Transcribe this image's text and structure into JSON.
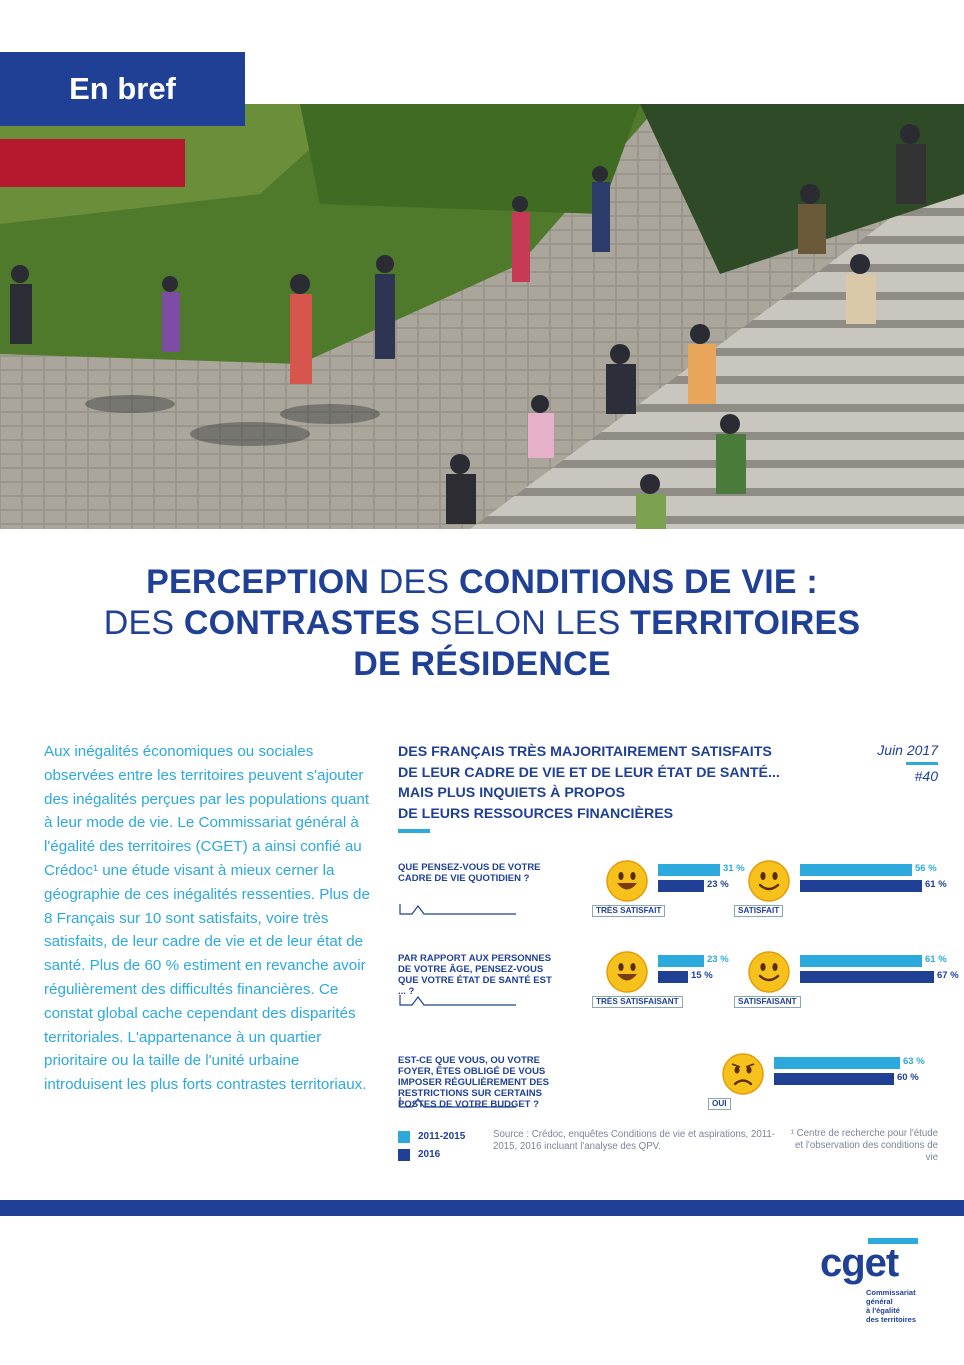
{
  "banner": {
    "label": "En bref"
  },
  "title": {
    "line1_a": "PERCEPTION",
    "line1_b": " DES ",
    "line1_c": "CONDITIONS DE VIE :",
    "line2_a": "DES ",
    "line2_b": "CONTRASTES",
    "line2_c": " SELON LES ",
    "line2_d": "TERRITOIRES",
    "line3": "DE RÉSIDENCE"
  },
  "intro": "Aux inégalités économiques ou sociales observées entre les territoires peuvent s'ajouter des inégalités perçues par les populations quant à leur mode de vie. Le Commissariat général à l'égalité des territoires (CGET) a ainsi confié au Crédoc¹ une étude visant à mieux cerner la géographie de ces inégalités ressenties. Plus de 8 Français sur 10 sont satisfaits, voire très satisfaits, de leur cadre de vie et de leur état de santé. Plus de 60 % estiment en revanche avoir régulièrement des difficultés financières. Ce constat global cache cependant des disparités territoriales. L'appartenance à un quartier prioritaire ou la taille de l'unité urbaine introduisent les plus forts contrastes territoriaux.",
  "chart_header": {
    "line1": "DES FRANÇAIS TRÈS MAJORITAIREMENT SATISFAITS",
    "line2": "DE LEUR CADRE DE VIE ET DE LEUR ÉTAT DE SANTÉ...",
    "line3": "MAIS PLUS INQUIETS À PROPOS",
    "line4": "DE LEURS RESSOURCES FINANCIÈRES",
    "date": "Juin 2017",
    "number": "#40"
  },
  "chart_data": {
    "type": "bar",
    "series_names": [
      "2011-2015",
      "2016"
    ],
    "colors": {
      "2011-2015": "#2ca9dd",
      "2016": "#1f4095"
    },
    "questions": [
      {
        "text": "QUE PENSEZ-VOUS DE VOTRE CADRE DE VIE QUOTIDIEN ?",
        "groups": [
          {
            "label": "TRÈS SATISFAIT",
            "face": "happy",
            "values": [
              31,
              23
            ],
            "labels": [
              "31 %",
              "23 %"
            ]
          },
          {
            "label": "SATISFAIT",
            "face": "smile",
            "values": [
              56,
              61
            ],
            "labels": [
              "56 %",
              "61 %"
            ]
          }
        ]
      },
      {
        "text": "PAR RAPPORT AUX PERSONNES DE VOTRE ÂGE, PENSEZ-VOUS QUE VOTRE ÉTAT DE SANTÉ EST ... ?",
        "groups": [
          {
            "label": "TRÈS SATISFAISANT",
            "face": "happy",
            "values": [
              23,
              15
            ],
            "labels": [
              "23 %",
              "15 %"
            ]
          },
          {
            "label": "SATISFAISANT",
            "face": "smile",
            "values": [
              61,
              67
            ],
            "labels": [
              "61 %",
              "67 %"
            ]
          }
        ]
      },
      {
        "text": "EST-CE QUE VOUS, OU VOTRE FOYER, ÊTES OBLIGÉ DE VOUS IMPOSER RÉGULIÈREMENT DES RESTRICTIONS SUR CERTAINS POSTES DE VOTRE BUDGET ?",
        "groups": [
          {
            "label": "OUI",
            "face": "sad",
            "values": [
              63,
              60
            ],
            "labels": [
              "63 %",
              "60 %"
            ]
          }
        ]
      }
    ]
  },
  "legend": {
    "item1": "2011-2015",
    "item2": "2016"
  },
  "source": "Source : Crédoc, enquêtes Conditions de vie et aspirations, 2011-2015, 2016 incluant l'analyse des QPV.",
  "footnote": "¹ Centre de recherche pour l'étude et l'observation des conditions de vie",
  "logo": {
    "name": "cget",
    "line1": "Commissariat",
    "line2": "général",
    "line3": "à l'égalité",
    "line4": "des territoires"
  }
}
